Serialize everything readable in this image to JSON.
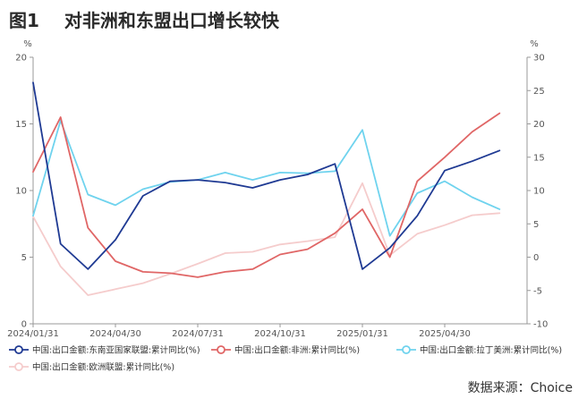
{
  "figure": {
    "label": "图1",
    "title": "对非洲和东盟出口增长较快",
    "source": "数据来源：Choice"
  },
  "chart_data": {
    "type": "line",
    "x": [
      "2024/01/31",
      "2024/02/29",
      "2024/03/31",
      "2024/04/30",
      "2024/05/31",
      "2024/06/30",
      "2024/07/31",
      "2024/08/31",
      "2024/09/30",
      "2024/10/31",
      "2024/11/30",
      "2024/12/31",
      "2025/01/31",
      "2025/02/28",
      "2025/03/31",
      "2025/04/30",
      "2025/05/31",
      "2025/06/30",
      "2025/07/31"
    ],
    "x_tick_labels": [
      "2024/01/31",
      "2024/04/30",
      "2024/07/31",
      "2024/10/31",
      "2025/01/31",
      "2025/04/30"
    ],
    "left_axis": {
      "unit": "%",
      "ylim": [
        0,
        20
      ],
      "ticks": [
        0,
        5,
        10,
        15,
        20
      ]
    },
    "right_axis": {
      "unit": "%",
      "ylim": [
        -10,
        30
      ],
      "ticks": [
        -10,
        -5,
        0,
        5,
        10,
        15,
        20,
        25,
        30
      ]
    },
    "grid": false,
    "legend_placement": "bottom",
    "series": [
      {
        "name": "中国:出口金额:东南亚国家联盟:累计同比(%)",
        "axis": "left",
        "color": "#1f3a93",
        "values": [
          18.1,
          6.0,
          4.1,
          6.3,
          9.6,
          10.7,
          10.8,
          10.6,
          10.2,
          10.8,
          11.2,
          12.0,
          4.1,
          5.7,
          8.1,
          11.5,
          12.2,
          13.0,
          null
        ]
      },
      {
        "name": "中国:出口金额:非洲:累计同比(%)",
        "axis": "left",
        "color": "#e06666",
        "values": [
          11.4,
          15.5,
          7.2,
          4.7,
          3.9,
          3.8,
          3.5,
          3.9,
          4.1,
          5.2,
          5.6,
          6.8,
          8.6,
          5.0,
          10.7,
          12.5,
          14.4,
          15.8,
          null
        ]
      },
      {
        "name": "中国:出口金额:拉丁美洲:累计同比(%)",
        "axis": "right",
        "color": "#6fd3ee",
        "values": [
          6.2,
          20.5,
          9.4,
          7.8,
          10.2,
          11.3,
          11.6,
          12.7,
          11.6,
          12.7,
          12.6,
          12.9,
          19.1,
          3.2,
          9.6,
          11.4,
          9.0,
          7.2,
          null
        ]
      },
      {
        "name": "中国:出口金额:欧洲联盟:累计同比(%)",
        "axis": "right",
        "color": "#f5cccc",
        "values": [
          6.1,
          -1.4,
          -5.7,
          -4.8,
          -3.9,
          -2.5,
          -1.0,
          0.6,
          0.8,
          1.9,
          2.4,
          3.0,
          11.1,
          0.3,
          3.5,
          4.8,
          6.3,
          6.6,
          null
        ]
      }
    ]
  }
}
